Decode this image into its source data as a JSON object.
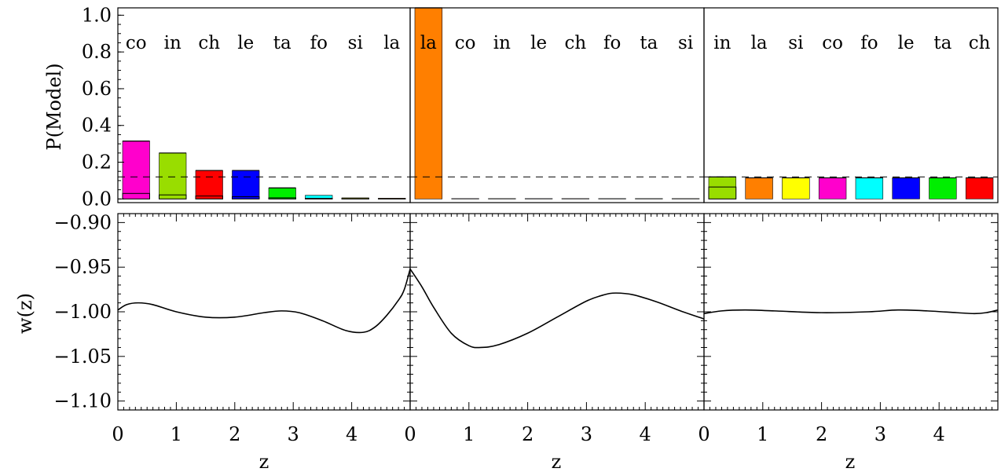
{
  "figure": {
    "y_label_top": "P(Model)",
    "y_label_bottom": "w(z)",
    "x_label": "z"
  },
  "chart_data": [
    {
      "type": "bar",
      "panel": "top-left",
      "categories": [
        "co",
        "in",
        "ch",
        "le",
        "ta",
        "fo",
        "si",
        "la"
      ],
      "values": [
        0.315,
        0.25,
        0.155,
        0.155,
        0.06,
        0.02,
        0.006,
        0.004
      ],
      "inner_values": [
        0.03,
        0.022,
        0.016,
        0.012,
        0.006,
        0.003,
        0.002,
        0.001
      ],
      "colors": [
        "#ff00cc",
        "#99dd00",
        "#ff0000",
        "#0000ff",
        "#00ee00",
        "#00ffff",
        "#ffff00",
        "#ff7f00"
      ],
      "reference_line": 0.12,
      "ylim": [
        -0.02,
        1.04
      ],
      "yticks": [
        0.0,
        0.2,
        0.4,
        0.6,
        0.8,
        1.0
      ]
    },
    {
      "type": "bar",
      "panel": "top-middle",
      "categories": [
        "la",
        "co",
        "in",
        "le",
        "ch",
        "fo",
        "ta",
        "si"
      ],
      "values": [
        1.04,
        0.002,
        0.002,
        0.002,
        0.002,
        0.002,
        0.002,
        0.002
      ],
      "inner_values": [
        0,
        0,
        0,
        0,
        0,
        0,
        0,
        0
      ],
      "colors": [
        "#ff7f00",
        "#ff00cc",
        "#99dd00",
        "#0000ff",
        "#ff0000",
        "#00ffff",
        "#00ee00",
        "#ffff00"
      ],
      "reference_line": 0.12,
      "ylim": [
        -0.02,
        1.04
      ]
    },
    {
      "type": "bar",
      "panel": "top-right",
      "categories": [
        "in",
        "la",
        "si",
        "co",
        "fo",
        "le",
        "ta",
        "ch"
      ],
      "values": [
        0.12,
        0.115,
        0.115,
        0.115,
        0.115,
        0.115,
        0.115,
        0.115
      ],
      "inner_values": [
        0.065,
        0,
        0,
        0,
        0,
        0,
        0,
        0
      ],
      "colors": [
        "#99dd00",
        "#ff7f00",
        "#ffff00",
        "#ff00cc",
        "#00ffff",
        "#0000ff",
        "#00ee00",
        "#ff0000"
      ],
      "reference_line": 0.12,
      "ylim": [
        -0.02,
        1.04
      ]
    },
    {
      "type": "line",
      "panel": "bottom-left",
      "xlabel": "z",
      "xlim": [
        0,
        5
      ],
      "xticks": [
        0,
        1,
        2,
        3,
        4
      ],
      "ylim": [
        -1.11,
        -0.89
      ],
      "yticks": [
        -0.9,
        -0.95,
        -1.0,
        -1.05,
        -1.1
      ],
      "x": [
        0,
        0.15,
        0.35,
        0.6,
        1.0,
        1.5,
        2.0,
        2.5,
        2.8,
        3.1,
        3.5,
        3.9,
        4.2,
        4.4,
        4.6,
        4.8,
        4.9,
        5.0
      ],
      "y": [
        -0.998,
        -0.992,
        -0.99,
        -0.992,
        -1.0,
        -1.006,
        -1.006,
        -1.001,
        -0.999,
        -1.001,
        -1.01,
        -1.021,
        -1.023,
        -1.017,
        -1.004,
        -0.987,
        -0.975,
        -0.952
      ]
    },
    {
      "type": "line",
      "panel": "bottom-middle",
      "xlabel": "z",
      "xlim": [
        0,
        5
      ],
      "xticks": [
        0,
        1,
        2,
        3,
        4
      ],
      "ylim": [
        -1.11,
        -0.89
      ],
      "x": [
        0,
        0.2,
        0.4,
        0.7,
        1.0,
        1.2,
        1.5,
        2.0,
        2.5,
        3.0,
        3.3,
        3.5,
        3.8,
        4.2,
        4.6,
        5.0
      ],
      "y": [
        -0.952,
        -0.972,
        -0.995,
        -1.024,
        -1.038,
        -1.04,
        -1.037,
        -1.024,
        -1.006,
        -0.988,
        -0.981,
        -0.979,
        -0.981,
        -0.989,
        -0.999,
        -1.008
      ]
    },
    {
      "type": "line",
      "panel": "bottom-right",
      "xlabel": "z",
      "xlim": [
        0,
        5
      ],
      "xticks": [
        0,
        1,
        2,
        3,
        4
      ],
      "ylim": [
        -1.11,
        -0.89
      ],
      "x": [
        0,
        0.3,
        0.7,
        1.2,
        2.0,
        2.8,
        3.3,
        3.8,
        4.3,
        4.6,
        4.8,
        5.0
      ],
      "y": [
        -1.002,
        -0.999,
        -0.998,
        -0.999,
        -1.001,
        -1.0,
        -0.998,
        -0.999,
        -1.001,
        -1.002,
        -1.001,
        -0.998
      ]
    }
  ]
}
